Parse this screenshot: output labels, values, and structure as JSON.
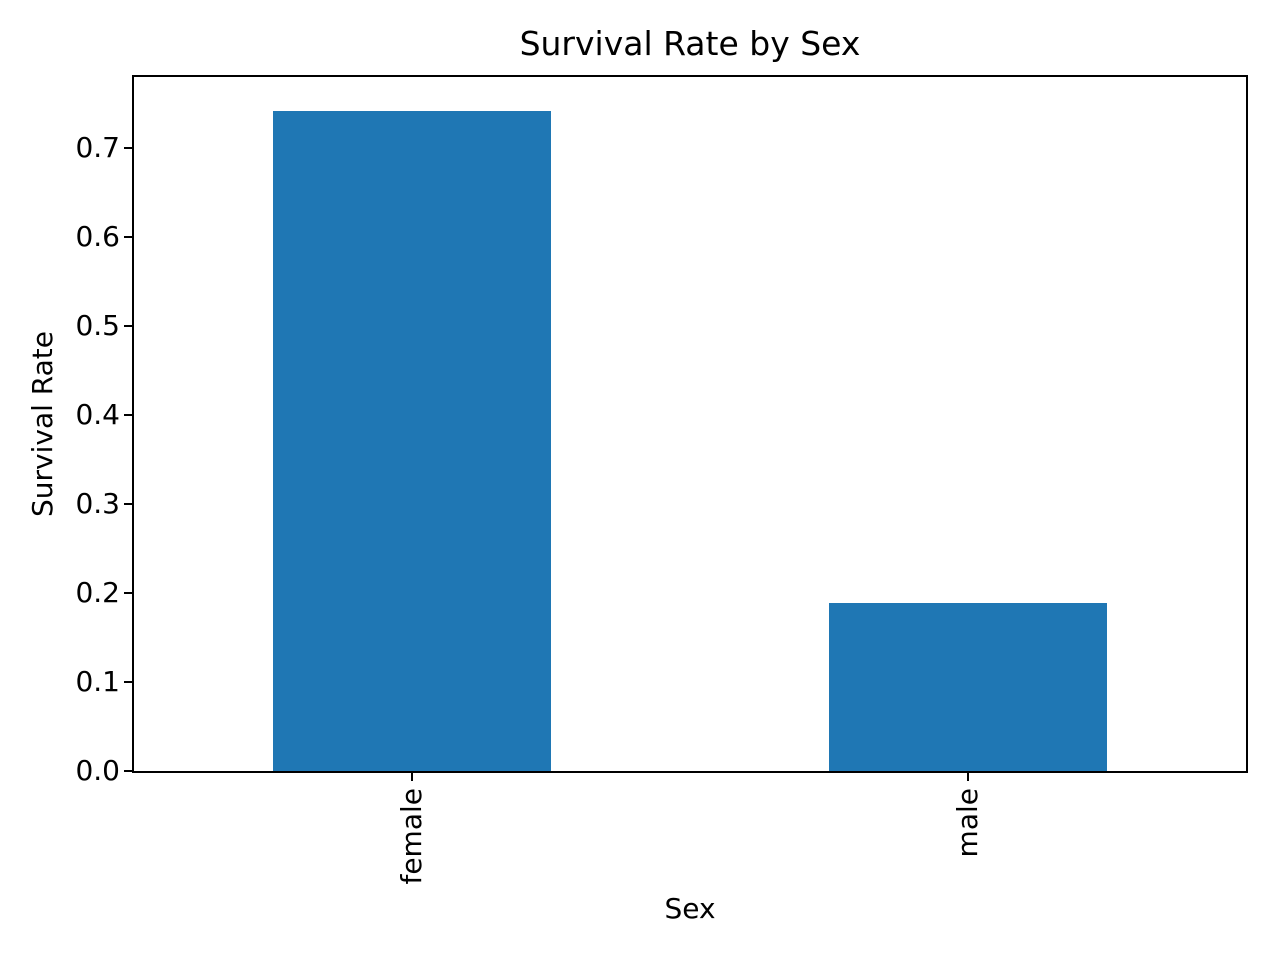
{
  "chart_data": {
    "type": "bar",
    "title": "Survival Rate by Sex",
    "xlabel": "Sex",
    "ylabel": "Survival Rate",
    "categories": [
      "female",
      "male"
    ],
    "values": [
      0.742,
      0.189
    ],
    "ylim": [
      0,
      0.78
    ],
    "yticks": [
      0.0,
      0.1,
      0.2,
      0.3,
      0.4,
      0.5,
      0.6,
      0.7
    ],
    "ytick_labels": [
      "0.0",
      "0.1",
      "0.2",
      "0.3",
      "0.4",
      "0.5",
      "0.6",
      "0.7"
    ],
    "xtick_rotation": 90,
    "bar_color": "#1f77b4",
    "axis_color": "#000000",
    "background_color": "#ffffff",
    "grid": false,
    "legend": "none"
  }
}
